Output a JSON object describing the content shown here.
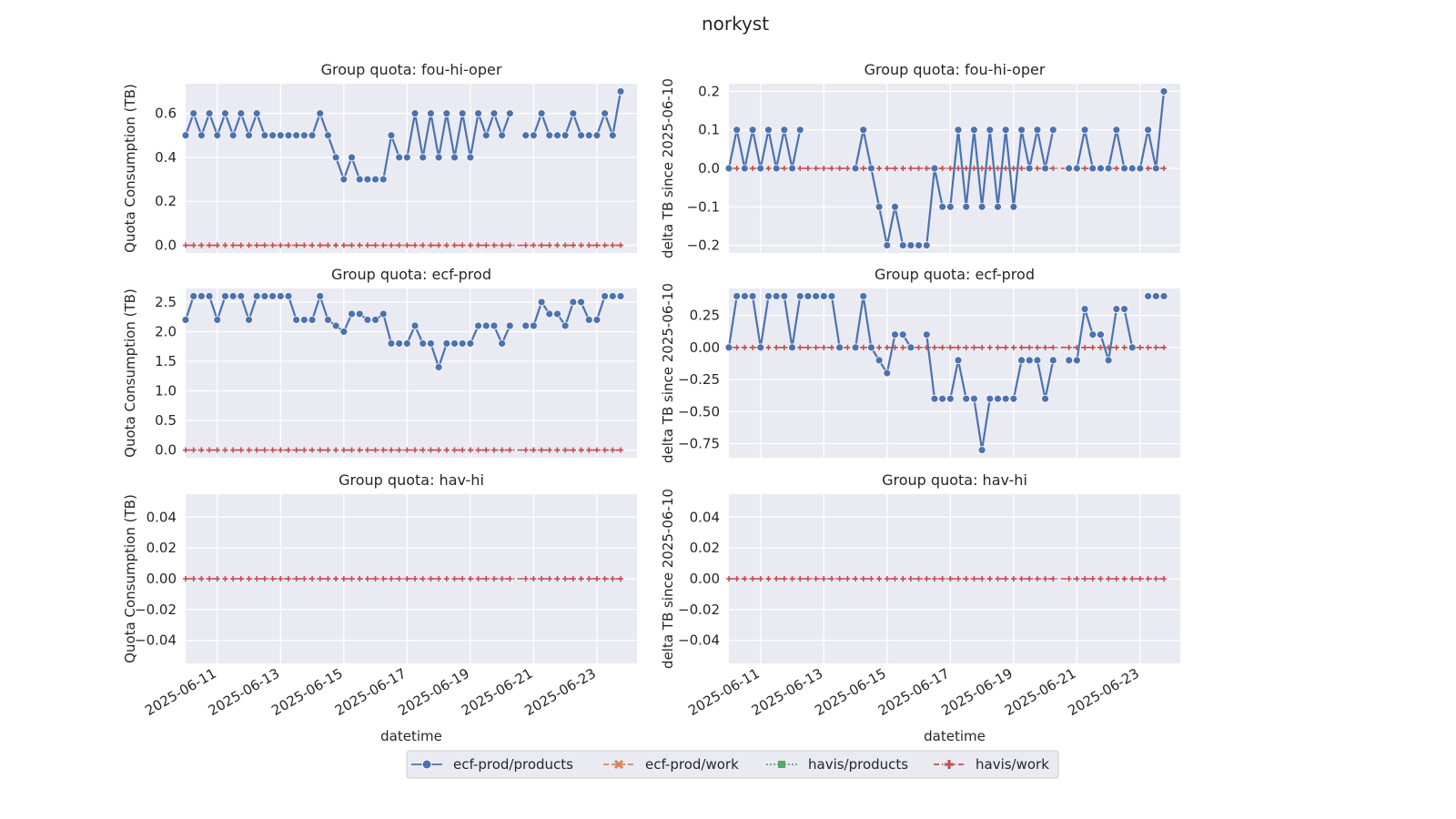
{
  "figure": {
    "title": "norkyst",
    "xlabel": "datetime"
  },
  "colors": {
    "ecf_prod_products": "#4c72b0",
    "ecf_prod_work": "#dd8452",
    "havis_products": "#55a868",
    "havis_work": "#c44e52",
    "panel_bg": "#eaeaf2",
    "grid": "#ffffff"
  },
  "legend": {
    "placement": "bottom-center",
    "entries": [
      {
        "label": "ecf-prod/products",
        "marker": "circle",
        "line": "solid"
      },
      {
        "label": "ecf-prod/work",
        "marker": "x",
        "line": "dashed"
      },
      {
        "label": "havis/products",
        "marker": "square",
        "line": "dotted"
      },
      {
        "label": "havis/work",
        "marker": "plus",
        "line": "dashdot"
      }
    ]
  },
  "chart_data": [
    {
      "type": "line",
      "title": "Group quota: fou-hi-oper",
      "ylabel": "Quota Consumption (TB)",
      "xlabel": "datetime",
      "ylim": [
        -0.035,
        0.735
      ],
      "yticks": [
        "0.0",
        "0.2",
        "0.4",
        "0.6"
      ],
      "ytick_values": [
        0,
        0.2,
        0.4,
        0.6
      ],
      "x_tick_labels": [
        "2025-06-11",
        "2025-06-13",
        "2025-06-15",
        "2025-06-17",
        "2025-06-19",
        "2025-06-21",
        "2025-06-23"
      ],
      "products_values": [
        0.5,
        0.6,
        0.5,
        0.6,
        0.5,
        0.6,
        0.5,
        0.6,
        0.5,
        0.6,
        0.5,
        0.5,
        0.5,
        0.5,
        0.5,
        0.5,
        0.5,
        0.6,
        0.5,
        0.4,
        0.3,
        0.4,
        0.3,
        0.3,
        0.3,
        0.3,
        0.5,
        0.4,
        0.4,
        0.6,
        0.4,
        0.6,
        0.4,
        0.6,
        0.4,
        0.6,
        0.4,
        0.6,
        0.5,
        0.6,
        0.5,
        0.6,
        null,
        0.5,
        0.5,
        0.6,
        0.5,
        0.5,
        0.5,
        0.6,
        0.5,
        0.5,
        0.5,
        0.6,
        0.5,
        0.7
      ],
      "other_values_all": 0,
      "grid": true
    },
    {
      "type": "line",
      "title": "Group quota: fou-hi-oper",
      "ylabel": "delta TB since 2025-06-10",
      "xlabel": "datetime",
      "ylim": [
        -0.22,
        0.22
      ],
      "yticks": [
        "−0.2",
        "−0.1",
        "0.0",
        "0.1",
        "0.2"
      ],
      "ytick_values": [
        -0.2,
        -0.1,
        0,
        0.1,
        0.2
      ],
      "x_tick_labels": [
        "2025-06-11",
        "2025-06-13",
        "2025-06-15",
        "2025-06-17",
        "2025-06-19",
        "2025-06-21",
        "2025-06-23"
      ],
      "products_values": [
        0,
        0.1,
        0,
        0.1,
        0,
        0.1,
        0,
        0.1,
        0,
        0.1,
        null,
        null,
        null,
        null,
        null,
        null,
        0,
        0.1,
        0,
        -0.1,
        -0.2,
        -0.1,
        -0.2,
        -0.2,
        -0.2,
        -0.2,
        0,
        -0.1,
        -0.1,
        0.1,
        -0.1,
        0.1,
        -0.1,
        0.1,
        -0.1,
        0.1,
        -0.1,
        0.1,
        0,
        0.1,
        0,
        0.1,
        null,
        0,
        0,
        0.1,
        0,
        0,
        0,
        0.1,
        0,
        0,
        0,
        0.1,
        0,
        0.2
      ],
      "other_values_all": 0,
      "grid": true
    },
    {
      "type": "line",
      "title": "Group quota: ecf-prod",
      "ylabel": "Quota Consumption (TB)",
      "xlabel": "datetime",
      "ylim": [
        -0.13,
        2.73
      ],
      "yticks": [
        "0.0",
        "0.5",
        "1.0",
        "1.5",
        "2.0",
        "2.5"
      ],
      "ytick_values": [
        0,
        0.5,
        1.0,
        1.5,
        2.0,
        2.5
      ],
      "x_tick_labels": [
        "2025-06-11",
        "2025-06-13",
        "2025-06-15",
        "2025-06-17",
        "2025-06-19",
        "2025-06-21",
        "2025-06-23"
      ],
      "products_values": [
        2.2,
        2.6,
        2.6,
        2.6,
        2.2,
        2.6,
        2.6,
        2.6,
        2.2,
        2.6,
        2.6,
        2.6,
        2.6,
        2.6,
        2.2,
        2.2,
        2.2,
        2.6,
        2.2,
        2.1,
        2.0,
        2.3,
        2.3,
        2.2,
        2.2,
        2.3,
        1.8,
        1.8,
        1.8,
        2.1,
        1.8,
        1.8,
        1.4,
        1.8,
        1.8,
        1.8,
        1.8,
        2.1,
        2.1,
        2.1,
        1.8,
        2.1,
        null,
        2.1,
        2.1,
        2.5,
        2.3,
        2.3,
        2.1,
        2.5,
        2.5,
        2.2,
        2.2,
        2.6,
        2.6,
        2.6
      ],
      "other_values_all": 0,
      "grid": true
    },
    {
      "type": "line",
      "title": "Group quota: ecf-prod",
      "ylabel": "delta TB since 2025-06-10",
      "xlabel": "datetime",
      "ylim": [
        -0.86,
        0.46
      ],
      "yticks": [
        "−0.75",
        "−0.50",
        "−0.25",
        "0.00",
        "0.25"
      ],
      "ytick_values": [
        -0.75,
        -0.5,
        -0.25,
        0,
        0.25
      ],
      "x_tick_labels": [
        "2025-06-11",
        "2025-06-13",
        "2025-06-15",
        "2025-06-17",
        "2025-06-19",
        "2025-06-21",
        "2025-06-23"
      ],
      "products_values": [
        0,
        0.4,
        0.4,
        0.4,
        0,
        0.4,
        0.4,
        0.4,
        0,
        0.4,
        0.4,
        0.4,
        0.4,
        0.4,
        0,
        null,
        0,
        0.4,
        0,
        -0.1,
        -0.2,
        0.1,
        0.1,
        0,
        null,
        0.1,
        -0.4,
        -0.4,
        -0.4,
        -0.1,
        -0.4,
        -0.4,
        -0.8,
        -0.4,
        -0.4,
        -0.4,
        -0.4,
        -0.1,
        -0.1,
        -0.1,
        -0.4,
        -0.1,
        null,
        -0.1,
        -0.1,
        0.3,
        0.1,
        0.1,
        -0.1,
        0.3,
        0.3,
        0,
        null,
        0.4,
        0.4,
        0.4
      ],
      "other_values_all": 0,
      "grid": true
    },
    {
      "type": "line",
      "title": "Group quota: hav-hi",
      "ylabel": "Quota Consumption (TB)",
      "xlabel": "datetime",
      "ylim": [
        -0.055,
        0.055
      ],
      "yticks": [
        "−0.04",
        "−0.02",
        "0.00",
        "0.02",
        "0.04"
      ],
      "ytick_values": [
        -0.04,
        -0.02,
        0,
        0.02,
        0.04
      ],
      "x_tick_labels": [
        "2025-06-11",
        "2025-06-13",
        "2025-06-15",
        "2025-06-17",
        "2025-06-19",
        "2025-06-21",
        "2025-06-23"
      ],
      "products_values": [],
      "other_values_all": 0,
      "grid": true
    },
    {
      "type": "line",
      "title": "Group quota: hav-hi",
      "ylabel": "delta TB since 2025-06-10",
      "xlabel": "datetime",
      "ylim": [
        -0.055,
        0.055
      ],
      "yticks": [
        "−0.04",
        "−0.02",
        "0.00",
        "0.02",
        "0.04"
      ],
      "ytick_values": [
        -0.04,
        -0.02,
        0,
        0.02,
        0.04
      ],
      "x_tick_labels": [
        "2025-06-11",
        "2025-06-13",
        "2025-06-15",
        "2025-06-17",
        "2025-06-19",
        "2025-06-21",
        "2025-06-23"
      ],
      "products_values": [],
      "other_values_all": 0,
      "grid": true
    }
  ]
}
